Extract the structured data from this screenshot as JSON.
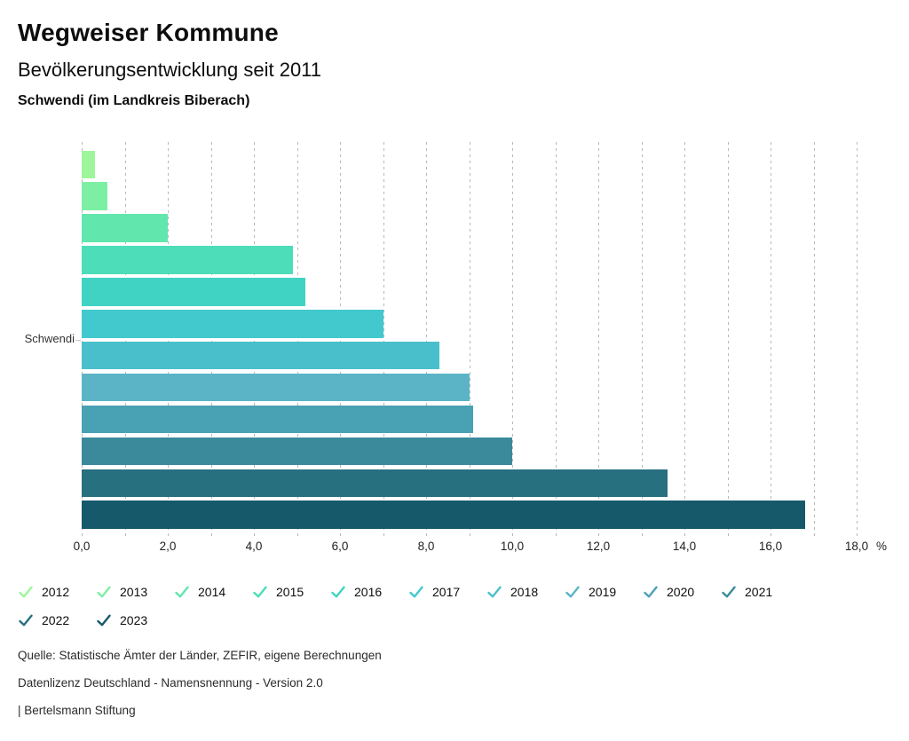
{
  "header": {
    "title": "Wegweiser Kommune",
    "subtitle": "Bevölkerungsentwicklung seit 2011",
    "location": "Schwendi (im Landkreis Biberach)"
  },
  "chart_data": {
    "type": "bar",
    "orientation": "horizontal",
    "title": "Bevölkerungsentwicklung seit 2011",
    "category": "Schwendi",
    "unit": "%",
    "xlim": [
      0,
      18
    ],
    "grid_step": 1,
    "label_step": 2,
    "decimal_separator": ",",
    "grid": true,
    "legend_position": "bottom",
    "series": [
      {
        "name": "2012",
        "value": 0.3,
        "color": "#9df69b"
      },
      {
        "name": "2013",
        "value": 0.6,
        "color": "#7defa3"
      },
      {
        "name": "2014",
        "value": 2.0,
        "color": "#61e7ad"
      },
      {
        "name": "2015",
        "value": 4.9,
        "color": "#4dddb8"
      },
      {
        "name": "2016",
        "value": 5.2,
        "color": "#40d3c3"
      },
      {
        "name": "2017",
        "value": 7.0,
        "color": "#42c9ce"
      },
      {
        "name": "2018",
        "value": 8.3,
        "color": "#4abfcc"
      },
      {
        "name": "2019",
        "value": 9.0,
        "color": "#5ab4c6"
      },
      {
        "name": "2020",
        "value": 9.1,
        "color": "#49a1b4"
      },
      {
        "name": "2021",
        "value": 10.0,
        "color": "#3a8a9b"
      },
      {
        "name": "2022",
        "value": 13.6,
        "color": "#27707f"
      },
      {
        "name": "2023",
        "value": 16.8,
        "color": "#15596a"
      }
    ]
  },
  "footer": {
    "source": "Quelle: Statistische Ämter der Länder, ZEFIR, eigene Berechnungen",
    "license": "Datenlizenz Deutschland - Namensnennung - Version 2.0",
    "attribution": "| Bertelsmann Stiftung"
  }
}
